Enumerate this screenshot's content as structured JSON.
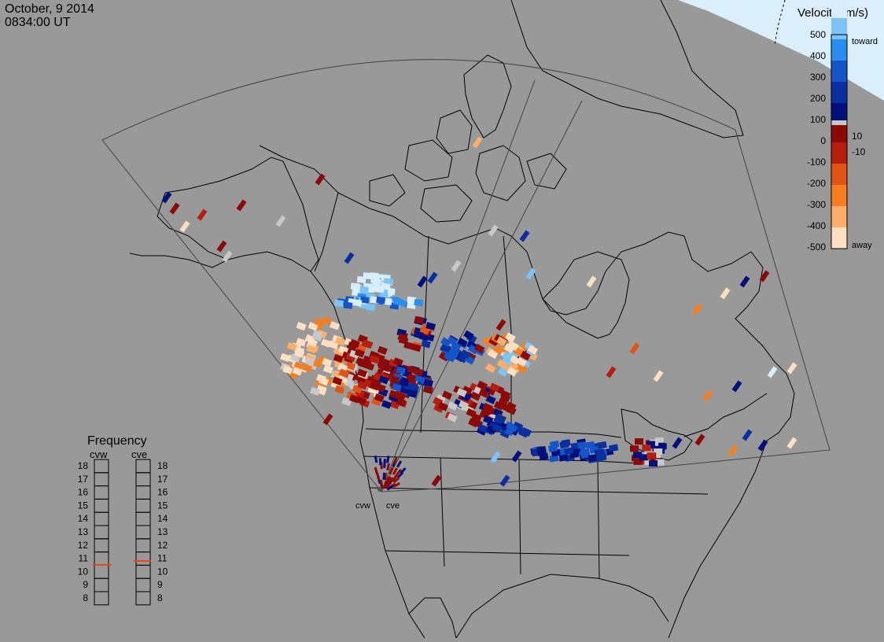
{
  "header": {
    "date": "October, 9 2014",
    "time": "0834:00 UT"
  },
  "radars": [
    {
      "code": "cvw"
    },
    {
      "code": "cve"
    }
  ],
  "colorbar": {
    "title": "Velocity (m/s)",
    "ticks": [
      "500",
      "400",
      "300",
      "200",
      "100",
      "10",
      "0",
      "-10",
      "-100",
      "-200",
      "-300",
      "-400",
      "-500"
    ],
    "toward_label": "toward",
    "away_label": "away",
    "colors": [
      "#fde0c4",
      "#fdae6b",
      "#f57f20",
      "#e05416",
      "#b81e10",
      "#8b0a08",
      "#c8c8c8",
      "#00107a",
      "#0a30a0",
      "#1555c8",
      "#2a8ef0",
      "#7cc4f8",
      "#d8eefc"
    ]
  },
  "frequency": {
    "title": "Frequency",
    "left_label": "cvw",
    "right_label": "cve",
    "scale": [
      "18",
      "17",
      "16",
      "15",
      "14",
      "13",
      "12",
      "11",
      "10",
      "9",
      "8"
    ],
    "cvw_value_mhz": 10.5,
    "cve_value_mhz": 10.8
  },
  "map": {
    "background": "#999999",
    "coast_color": "#000000",
    "fov_color": "#444444",
    "day_color": "#dbeefb"
  }
}
